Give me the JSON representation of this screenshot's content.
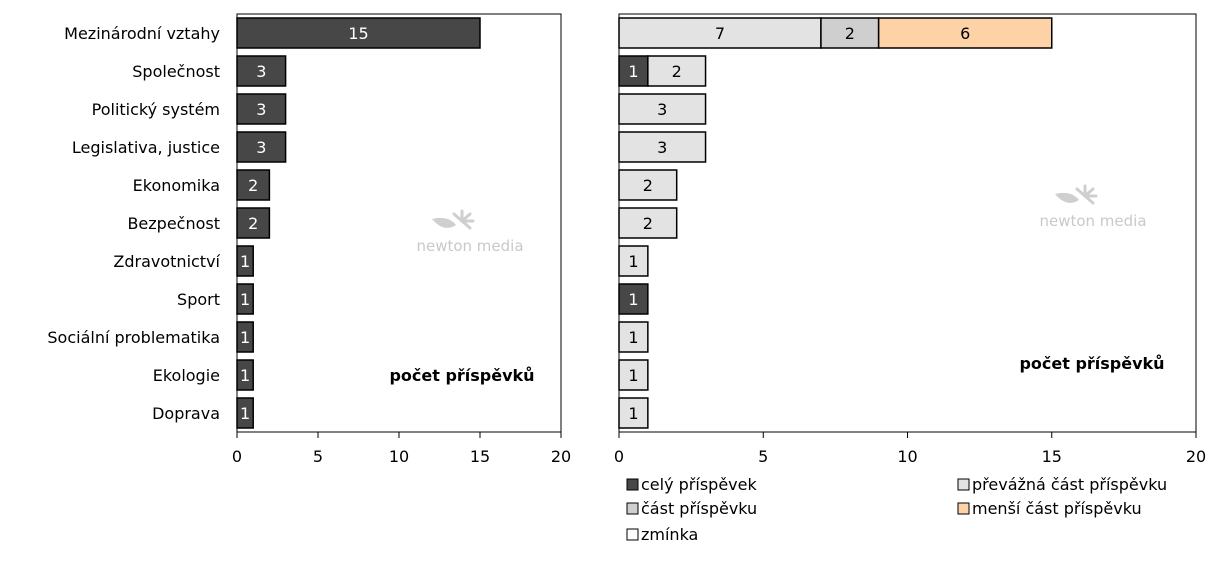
{
  "chart_data": [
    {
      "type": "bar",
      "orientation": "horizontal",
      "categories": [
        "Mezinárodní vztahy",
        "Společnost",
        "Politický systém",
        "Legislativa, justice",
        "Ekonomika",
        "Bezpečnost",
        "Zdravotnictví",
        "Sport",
        "Sociální problematika",
        "Ekologie",
        "Doprava"
      ],
      "series": [
        {
          "values": [
            15,
            3,
            3,
            3,
            2,
            2,
            1,
            1,
            1,
            1,
            1
          ],
          "color": "#474747"
        }
      ],
      "xlim": [
        0,
        20
      ],
      "xticks": [
        0,
        5,
        10,
        15,
        20
      ],
      "annotation": "počet příspěvků",
      "watermark": "newton media",
      "grid": false
    },
    {
      "type": "bar",
      "orientation": "horizontal",
      "stacked": true,
      "categories": [
        "Mezinárodní vztahy",
        "Společnost",
        "Politický systém",
        "Legislativa, justice",
        "Ekonomika",
        "Bezpečnost",
        "Zdravotnictví",
        "Sport",
        "Sociální problematika",
        "Ekologie",
        "Doprava"
      ],
      "series": [
        {
          "name": "celý příspěvek",
          "color": "#474747",
          "values": [
            0,
            1,
            0,
            0,
            0,
            0,
            0,
            1,
            0,
            0,
            0
          ]
        },
        {
          "name": "převážná část příspěvku",
          "color": "#e3e3e3",
          "values": [
            7,
            2,
            3,
            3,
            2,
            2,
            1,
            0,
            1,
            1,
            1
          ]
        },
        {
          "name": "část příspěvku",
          "color": "#cfcfcf",
          "values": [
            2,
            0,
            0,
            0,
            0,
            0,
            0,
            0,
            0,
            0,
            0
          ]
        },
        {
          "name": "menší část příspěvku",
          "color": "#fcd2a6",
          "values": [
            6,
            0,
            0,
            0,
            0,
            0,
            0,
            0,
            0,
            0,
            0
          ]
        },
        {
          "name": "zmínka",
          "color": "#ffffff",
          "values": [
            0,
            0,
            0,
            0,
            0,
            0,
            0,
            0,
            0,
            0,
            0
          ]
        }
      ],
      "xlim": [
        0,
        20
      ],
      "xticks": [
        0,
        5,
        10,
        15,
        20
      ],
      "annotation": "počet příspěvků",
      "watermark": "newton media",
      "legend_position": "bottom",
      "grid": false
    }
  ]
}
